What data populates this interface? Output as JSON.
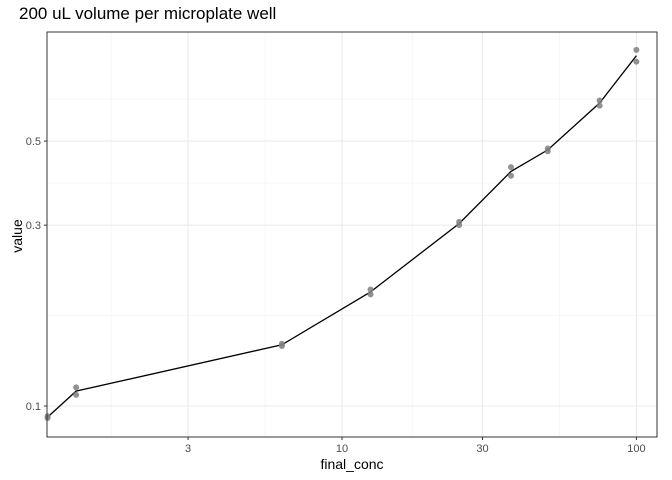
{
  "chart_data": {
    "type": "line",
    "title": "200 uL volume per microplate well",
    "xlabel": "final_conc",
    "ylabel": "value",
    "x_scale": "log10",
    "y_scale": "log10",
    "xlim": [
      1.0,
      120
    ],
    "ylim": [
      0.09,
      0.96
    ],
    "x_ticks": [
      3,
      10,
      30,
      100
    ],
    "x_tick_labels": [
      "3",
      "10",
      "30",
      "100"
    ],
    "y_ticks": [
      0.1,
      0.3,
      0.5
    ],
    "y_tick_labels": [
      "0.1",
      "0.3",
      "0.5"
    ],
    "grid": true,
    "legend": null,
    "series": [
      {
        "name": "points",
        "kind": "scatter",
        "color": "#7f7f7f",
        "x": [
          1.0,
          1.0,
          1.25,
          1.25,
          6.25,
          6.25,
          12.5,
          12.5,
          25,
          25,
          37.5,
          37.5,
          50,
          50,
          75,
          75,
          100,
          100
        ],
        "y": [
          0.093,
          0.094,
          0.112,
          0.107,
          0.146,
          0.144,
          0.203,
          0.197,
          0.306,
          0.3,
          0.427,
          0.405,
          0.478,
          0.47,
          0.64,
          0.62,
          0.87,
          0.81
        ]
      },
      {
        "name": "mean line",
        "kind": "line",
        "color": "#000000",
        "x": [
          1.0,
          1.25,
          6.25,
          12.5,
          25,
          37.5,
          50,
          75,
          100
        ],
        "y": [
          0.0935,
          0.1095,
          0.145,
          0.2,
          0.303,
          0.416,
          0.474,
          0.63,
          0.84
        ]
      }
    ]
  }
}
